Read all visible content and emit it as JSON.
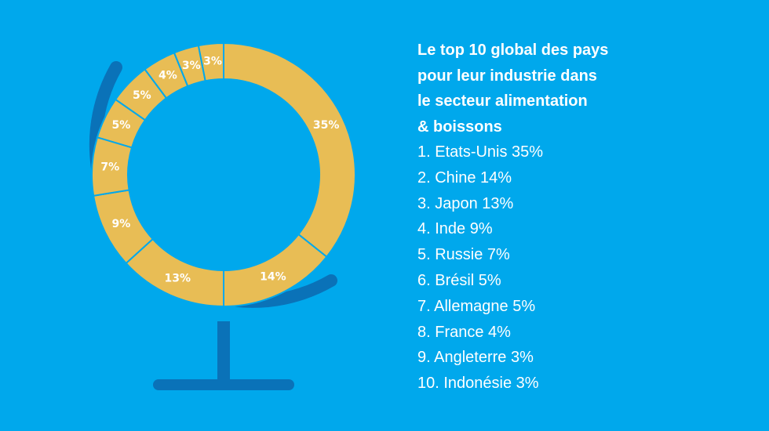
{
  "colors": {
    "background": "#00a8ec",
    "ring": "#e8bd55",
    "ring_divider": "#00a8ec",
    "globe_stand": "#0a72b8",
    "text": "#ffffff"
  },
  "legend": {
    "title_lines": [
      "Le top 10 global des pays",
      "pour leur industrie dans",
      "le secteur alimentation",
      "& boissons"
    ],
    "items": [
      "1. Etats-Unis 35%",
      "2. Chine 14%",
      "3. Japon 13%",
      "4. Inde 9%",
      "5. Russie 7%",
      "6. Brésil 5%",
      "7. Allemagne 5%",
      "8. France 4%",
      "9. Angleterre 3%",
      "10. Indonésie 3%"
    ]
  },
  "chart_data": {
    "type": "pie",
    "variant": "donut",
    "title": "Le top 10 global des pays pour leur industrie dans le secteur alimentation & boissons",
    "unit": "%",
    "categories": [
      "Etats-Unis",
      "Chine",
      "Japon",
      "Inde",
      "Russie",
      "Brésil",
      "Allemagne",
      "France",
      "Angleterre",
      "Indonésie"
    ],
    "values": [
      35,
      14,
      13,
      9,
      7,
      5,
      5,
      4,
      3,
      3
    ],
    "labels": [
      "35%",
      "14%",
      "13%",
      "9%",
      "7%",
      "5%",
      "5%",
      "4%",
      "3%",
      "3%"
    ],
    "start": "top",
    "direction": "clockwise"
  }
}
